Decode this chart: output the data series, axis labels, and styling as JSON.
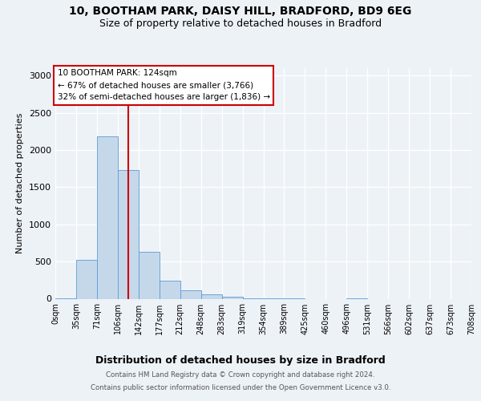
{
  "title_line1": "10, BOOTHAM PARK, DAISY HILL, BRADFORD, BD9 6EG",
  "title_line2": "Size of property relative to detached houses in Bradford",
  "xlabel": "Distribution of detached houses by size in Bradford",
  "ylabel": "Number of detached properties",
  "bin_labels": [
    "0sqm",
    "35sqm",
    "71sqm",
    "106sqm",
    "142sqm",
    "177sqm",
    "212sqm",
    "248sqm",
    "283sqm",
    "319sqm",
    "354sqm",
    "389sqm",
    "425sqm",
    "460sqm",
    "496sqm",
    "531sqm",
    "566sqm",
    "602sqm",
    "637sqm",
    "673sqm",
    "708sqm"
  ],
  "bar_values": [
    5,
    520,
    2180,
    1730,
    630,
    240,
    110,
    60,
    25,
    8,
    3,
    1,
    0,
    0,
    2,
    0,
    0,
    0,
    0,
    0
  ],
  "bar_color": "#c5d8ea",
  "bar_edge_color": "#5b9bd5",
  "ylim": [
    0,
    3100
  ],
  "yticks": [
    0,
    500,
    1000,
    1500,
    2000,
    2500,
    3000
  ],
  "annotation_title": "10 BOOTHAM PARK: 124sqm",
  "annotation_line2": "← 67% of detached houses are smaller (3,766)",
  "annotation_line3": "32% of semi-detached houses are larger (1,836) →",
  "red_line_x": 3.5,
  "footer_line1": "Contains HM Land Registry data © Crown copyright and database right 2024.",
  "footer_line2": "Contains public sector information licensed under the Open Government Licence v3.0.",
  "bg_color": "#edf2f7",
  "grid_color": "#ffffff",
  "red_line_color": "#cc0000"
}
